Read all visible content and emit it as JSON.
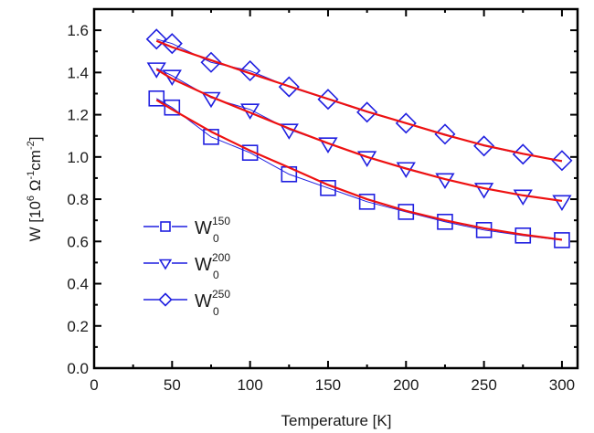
{
  "chart_data": {
    "type": "line",
    "title": "",
    "xlabel": "Temperature [K]",
    "ylabel": {
      "base": "W [10",
      "exp1": "6",
      "mid": " Ω",
      "exp2": "-1",
      "mid2": "cm",
      "exp3": "-2",
      "end": "]"
    },
    "xlim": [
      0,
      310
    ],
    "ylim": [
      0.0,
      1.7
    ],
    "xticks": [
      0,
      50,
      100,
      150,
      200,
      250,
      300
    ],
    "xtick_labels": [
      "0",
      "50",
      "100",
      "150",
      "200",
      "250",
      "300"
    ],
    "yticks": [
      0.0,
      0.2,
      0.4,
      0.6,
      0.8,
      1.0,
      1.2,
      1.4,
      1.6
    ],
    "ytick_labels": [
      "0.0",
      "0.2",
      "0.4",
      "0.6",
      "0.8",
      "1.0",
      "1.2",
      "1.4",
      "1.6"
    ],
    "grid": false,
    "legend_position": "center-left",
    "colors": {
      "data": "#1f1fe0",
      "fit": "#ee1111",
      "axis": "#000000"
    },
    "x": [
      40,
      50,
      75,
      100,
      125,
      150,
      175,
      200,
      225,
      250,
      275,
      300
    ],
    "series": [
      {
        "name": "W0^150",
        "legend_base": "W",
        "legend_sub": "0",
        "legend_sup": "150",
        "marker": "square",
        "values": [
          1.277,
          1.234,
          1.095,
          1.02,
          0.918,
          0.853,
          0.788,
          0.74,
          0.693,
          0.654,
          0.628,
          0.606
        ],
        "fit": [
          1.27,
          1.225,
          1.12,
          1.03,
          0.95,
          0.868,
          0.8,
          0.745,
          0.7,
          0.662,
          0.632,
          0.608
        ]
      },
      {
        "name": "W0^200",
        "legend_base": "W",
        "legend_sub": "0",
        "legend_sup": "200",
        "marker": "triangle-down",
        "values": [
          1.42,
          1.385,
          1.28,
          1.225,
          1.13,
          1.065,
          1.0,
          0.948,
          0.896,
          0.85,
          0.818,
          0.792
        ],
        "fit": [
          1.415,
          1.37,
          1.285,
          1.21,
          1.135,
          1.065,
          1.0,
          0.945,
          0.895,
          0.852,
          0.818,
          0.792
        ]
      },
      {
        "name": "W0^250",
        "legend_base": "W",
        "legend_sub": "0",
        "legend_sup": "250",
        "marker": "diamond",
        "values": [
          1.558,
          1.537,
          1.448,
          1.408,
          1.332,
          1.273,
          1.212,
          1.16,
          1.108,
          1.052,
          1.013,
          0.983
        ],
        "fit": [
          1.55,
          1.52,
          1.458,
          1.396,
          1.335,
          1.275,
          1.215,
          1.16,
          1.105,
          1.055,
          1.015,
          0.98
        ]
      }
    ]
  }
}
